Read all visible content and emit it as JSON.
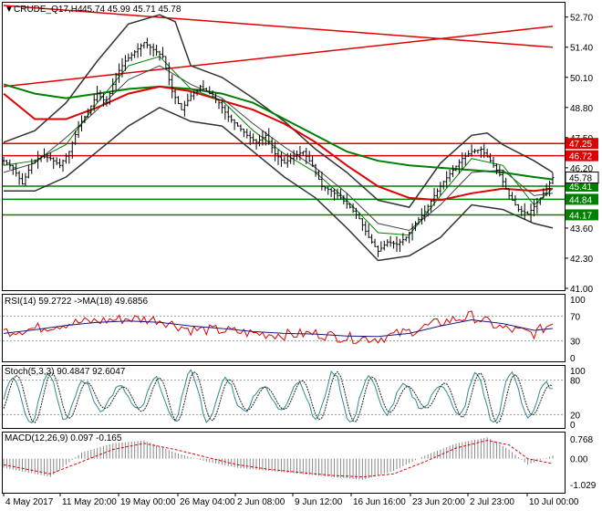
{
  "chart_data": [
    {
      "type": "ohlc",
      "panel": "main",
      "header": {
        "symbol": "CRUDE_Q17,H4",
        "values": "45.74 45.99 45.71 45.78"
      },
      "y_ticks": [
        "52.70",
        "51.40",
        "50.10",
        "48.80",
        "47.50",
        "46.20",
        "44.90",
        "43.60",
        "42.30",
        "41.00"
      ],
      "ylim": [
        41.0,
        53.2
      ],
      "levels": [
        {
          "label": "47.25",
          "value": 47.25,
          "color": "#e00000"
        },
        {
          "label": "46.72",
          "value": 46.72,
          "color": "#e00000"
        },
        {
          "label": "45.41",
          "value": 45.41,
          "color": "#008000"
        },
        {
          "label": "44.84",
          "value": 44.84,
          "color": "#008000"
        },
        {
          "label": "44.17",
          "value": 44.17,
          "color": "#008000"
        }
      ],
      "last_price": {
        "label": "45.78",
        "value": 45.78
      },
      "price_path": [
        [
          0,
          46.5
        ],
        [
          3,
          46.2
        ],
        [
          6,
          45.5
        ],
        [
          9,
          46.4
        ],
        [
          12,
          46.7
        ],
        [
          15,
          46.6
        ],
        [
          18,
          46.3
        ],
        [
          21,
          46.9
        ],
        [
          24,
          48.0
        ],
        [
          27,
          48.6
        ],
        [
          30,
          49.4
        ],
        [
          33,
          49.0
        ],
        [
          36,
          50.2
        ],
        [
          39,
          50.8
        ],
        [
          42,
          51.2
        ],
        [
          45,
          51.6
        ],
        [
          48,
          51.3
        ],
        [
          51,
          51.0
        ],
        [
          54,
          49.5
        ],
        [
          57,
          48.7
        ],
        [
          60,
          49.3
        ],
        [
          63,
          49.7
        ],
        [
          66,
          49.4
        ],
        [
          69,
          49.0
        ],
        [
          72,
          48.4
        ],
        [
          75,
          48.0
        ],
        [
          78,
          47.6
        ],
        [
          81,
          47.3
        ],
        [
          84,
          47.6
        ],
        [
          87,
          46.8
        ],
        [
          90,
          46.4
        ],
        [
          93,
          46.7
        ],
        [
          96,
          46.9
        ],
        [
          99,
          46.3
        ],
        [
          102,
          45.4
        ],
        [
          105,
          45.2
        ],
        [
          108,
          44.9
        ],
        [
          111,
          44.5
        ],
        [
          114,
          44.0
        ],
        [
          117,
          43.2
        ],
        [
          120,
          42.6
        ],
        [
          123,
          43.0
        ],
        [
          126,
          42.9
        ],
        [
          129,
          43.2
        ],
        [
          132,
          43.8
        ],
        [
          135,
          44.3
        ],
        [
          138,
          45.0
        ],
        [
          141,
          45.6
        ],
        [
          144,
          46.1
        ],
        [
          147,
          46.6
        ],
        [
          150,
          46.9
        ],
        [
          153,
          47.0
        ],
        [
          156,
          46.5
        ],
        [
          159,
          45.9
        ],
        [
          162,
          45.0
        ],
        [
          165,
          44.4
        ],
        [
          168,
          44.2
        ],
        [
          171,
          44.7
        ],
        [
          174,
          45.3
        ],
        [
          176,
          45.78
        ]
      ],
      "ma_fast": [
        [
          0,
          46.3
        ],
        [
          10,
          46.5
        ],
        [
          20,
          47.2
        ],
        [
          30,
          49.0
        ],
        [
          40,
          50.6
        ],
        [
          50,
          51.0
        ],
        [
          60,
          49.6
        ],
        [
          70,
          49.1
        ],
        [
          80,
          47.8
        ],
        [
          90,
          46.8
        ],
        [
          100,
          46.0
        ],
        [
          110,
          44.8
        ],
        [
          120,
          43.4
        ],
        [
          130,
          43.3
        ],
        [
          140,
          45.0
        ],
        [
          150,
          46.6
        ],
        [
          160,
          46.3
        ],
        [
          170,
          44.6
        ],
        [
          176,
          45.3
        ]
      ],
      "ma_mid": [
        [
          0,
          46.0
        ],
        [
          10,
          46.4
        ],
        [
          20,
          47.5
        ],
        [
          30,
          48.7
        ],
        [
          40,
          50.0
        ],
        [
          50,
          50.6
        ],
        [
          60,
          49.8
        ],
        [
          70,
          49.2
        ],
        [
          80,
          48.1
        ],
        [
          90,
          47.1
        ],
        [
          100,
          46.2
        ],
        [
          110,
          45.1
        ],
        [
          120,
          43.8
        ],
        [
          130,
          43.5
        ],
        [
          140,
          44.6
        ],
        [
          150,
          46.0
        ],
        [
          160,
          46.1
        ],
        [
          170,
          45.0
        ],
        [
          176,
          45.1
        ]
      ],
      "ma_red": [
        [
          0,
          49.4
        ],
        [
          10,
          48.3
        ],
        [
          20,
          48.3
        ],
        [
          30,
          48.8
        ],
        [
          40,
          49.4
        ],
        [
          50,
          49.7
        ],
        [
          60,
          49.5
        ],
        [
          70,
          49.1
        ],
        [
          80,
          48.7
        ],
        [
          90,
          48.1
        ],
        [
          100,
          47.3
        ],
        [
          110,
          46.3
        ],
        [
          120,
          45.4
        ],
        [
          130,
          44.9
        ],
        [
          140,
          44.8
        ],
        [
          150,
          45.1
        ],
        [
          160,
          45.3
        ],
        [
          170,
          45.2
        ],
        [
          176,
          45.3
        ]
      ],
      "ma_green": [
        [
          0,
          49.8
        ],
        [
          10,
          49.4
        ],
        [
          20,
          49.2
        ],
        [
          30,
          49.4
        ],
        [
          40,
          49.6
        ],
        [
          50,
          49.7
        ],
        [
          60,
          49.6
        ],
        [
          70,
          49.4
        ],
        [
          80,
          49.0
        ],
        [
          90,
          48.3
        ],
        [
          100,
          47.6
        ],
        [
          110,
          46.9
        ],
        [
          120,
          46.5
        ],
        [
          130,
          46.3
        ],
        [
          140,
          46.2
        ],
        [
          150,
          46.1
        ],
        [
          160,
          46.0
        ],
        [
          170,
          45.8
        ],
        [
          176,
          45.7
        ]
      ],
      "bb_upper": [
        [
          0,
          47.3
        ],
        [
          10,
          47.8
        ],
        [
          20,
          49.0
        ],
        [
          30,
          50.8
        ],
        [
          40,
          52.4
        ],
        [
          50,
          52.8
        ],
        [
          55,
          52.5
        ],
        [
          60,
          50.6
        ],
        [
          70,
          50.1
        ],
        [
          80,
          49.2
        ],
        [
          90,
          48.2
        ],
        [
          100,
          47.0
        ],
        [
          110,
          46.0
        ],
        [
          120,
          44.8
        ],
        [
          130,
          44.5
        ],
        [
          140,
          46.4
        ],
        [
          150,
          47.6
        ],
        [
          155,
          47.7
        ],
        [
          160,
          47.2
        ],
        [
          170,
          46.5
        ],
        [
          176,
          46.0
        ]
      ],
      "bb_lower": [
        [
          0,
          45.2
        ],
        [
          10,
          45.2
        ],
        [
          20,
          45.8
        ],
        [
          30,
          46.9
        ],
        [
          40,
          48.0
        ],
        [
          50,
          48.8
        ],
        [
          60,
          48.2
        ],
        [
          70,
          48.0
        ],
        [
          80,
          46.9
        ],
        [
          90,
          45.8
        ],
        [
          100,
          44.9
        ],
        [
          110,
          43.6
        ],
        [
          120,
          42.2
        ],
        [
          130,
          42.4
        ],
        [
          140,
          43.2
        ],
        [
          150,
          44.6
        ],
        [
          160,
          44.4
        ],
        [
          170,
          43.8
        ],
        [
          176,
          43.6
        ]
      ],
      "trend_red_desc": [
        [
          0,
          53.2
        ],
        [
          176,
          51.4
        ]
      ],
      "trend_red_asc": [
        [
          0,
          49.7
        ],
        [
          176,
          52.3
        ]
      ],
      "trend_gray": [
        [
          0,
          49.7
        ],
        [
          176,
          52.3
        ]
      ]
    },
    {
      "type": "line",
      "panel": "rsi",
      "header": {
        "label": "RSI(14) 59.2722 ->MA(18) 49.6856"
      },
      "y_ticks": [
        "100",
        "70",
        "30",
        "0"
      ],
      "ylim": [
        0,
        100
      ],
      "rsi": [
        [
          0,
          45
        ],
        [
          10,
          50
        ],
        [
          20,
          58
        ],
        [
          30,
          62
        ],
        [
          40,
          66
        ],
        [
          50,
          64
        ],
        [
          60,
          48
        ],
        [
          70,
          47
        ],
        [
          80,
          42
        ],
        [
          90,
          40
        ],
        [
          100,
          42
        ],
        [
          110,
          35
        ],
        [
          120,
          34
        ],
        [
          130,
          45
        ],
        [
          140,
          60
        ],
        [
          150,
          70
        ],
        [
          160,
          50
        ],
        [
          170,
          42
        ],
        [
          176,
          59
        ]
      ],
      "rsi_ma": [
        [
          0,
          42
        ],
        [
          10,
          48
        ],
        [
          20,
          55
        ],
        [
          30,
          60
        ],
        [
          40,
          62
        ],
        [
          50,
          60
        ],
        [
          60,
          54
        ],
        [
          70,
          50
        ],
        [
          80,
          45
        ],
        [
          90,
          42
        ],
        [
          100,
          41
        ],
        [
          110,
          38
        ],
        [
          120,
          37
        ],
        [
          130,
          42
        ],
        [
          140,
          54
        ],
        [
          150,
          64
        ],
        [
          160,
          58
        ],
        [
          170,
          47
        ],
        [
          176,
          50
        ]
      ]
    },
    {
      "type": "line",
      "panel": "stoch",
      "header": {
        "label": "Stoch(5,3,3) 90.4847 92.6047"
      },
      "y_ticks": [
        "100",
        "80",
        "20",
        "0"
      ],
      "ylim": [
        0,
        100
      ]
    },
    {
      "type": "bar",
      "panel": "macd",
      "header": {
        "label": "MACD(12,26,9) 0.097 -0.165"
      },
      "y_ticks": [
        "0.768",
        "0.00",
        "-1.029"
      ],
      "ylim": [
        -1.029,
        0.768
      ],
      "hist": [
        [
          0,
          -0.3
        ],
        [
          15,
          -0.6
        ],
        [
          25,
          0.2
        ],
        [
          35,
          0.5
        ],
        [
          45,
          0.6
        ],
        [
          55,
          0.2
        ],
        [
          65,
          -0.1
        ],
        [
          75,
          -0.3
        ],
        [
          85,
          -0.4
        ],
        [
          95,
          -0.5
        ],
        [
          105,
          -0.6
        ],
        [
          115,
          -0.7
        ],
        [
          125,
          -0.4
        ],
        [
          135,
          0.1
        ],
        [
          145,
          0.5
        ],
        [
          155,
          0.7
        ],
        [
          162,
          0.3
        ],
        [
          168,
          -0.2
        ],
        [
          176,
          0.1
        ]
      ],
      "signal": [
        [
          0,
          -0.2
        ],
        [
          15,
          -0.5
        ],
        [
          25,
          -0.1
        ],
        [
          35,
          0.3
        ],
        [
          45,
          0.5
        ],
        [
          55,
          0.3
        ],
        [
          65,
          0.05
        ],
        [
          75,
          -0.2
        ],
        [
          85,
          -0.35
        ],
        [
          95,
          -0.45
        ],
        [
          105,
          -0.55
        ],
        [
          115,
          -0.6
        ],
        [
          125,
          -0.5
        ],
        [
          135,
          -0.1
        ],
        [
          145,
          0.35
        ],
        [
          155,
          0.6
        ],
        [
          162,
          0.45
        ],
        [
          168,
          0.0
        ],
        [
          176,
          -0.165
        ]
      ]
    }
  ],
  "x_axis": [
    "4 May 2017",
    "11 May 20:00",
    "19 May 00:00",
    "26 May 04:00",
    "2 Jun 08:00",
    "9 Jun 12:00",
    "16 Jun 16:00",
    "23 Jun 20:00",
    "2 Jul 23:00",
    "10 Jul 00:00"
  ],
  "colors": {
    "red": "#e00000",
    "green": "#008000",
    "teal": "#2e8b8b",
    "navy": "#1a1a80",
    "black": "#000000"
  }
}
